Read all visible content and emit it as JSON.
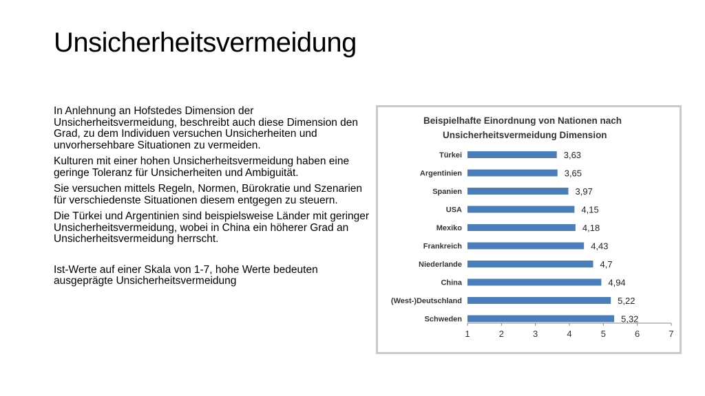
{
  "slide": {
    "title": "Unsicherheitsvermeidung",
    "paragraphs": [
      "In Anlehnung an Hofstedes Dimension der Unsicherheitsvermeidung, beschreibt auch diese Dimension den Grad, zu dem Individuen versuchen Unsicherheiten und unvorhersehbare Situationen zu vermeiden.",
      "Kulturen mit einer hohen Unsicherheitsvermeidung haben eine geringe Toleranz für Unsicherheiten und Ambiguität.",
      "Sie versuchen mittels Regeln, Normen, Bürokratie und Szenarien für verschiedenste Situationen diesem entgegen zu steuern.",
      "Die Türkei und Argentinien sind beispielsweise Länder mit geringer Unsicherheitsvermeidung, wobei in China ein höherer Grad an Unsicherheitsvermeidung herrscht.",
      "Ist-Werte auf einer Skala von 1-7, hohe Werte bedeuten ausgeprägte Unsicherheitsvermeidung"
    ]
  },
  "chart_data": {
    "type": "bar",
    "orientation": "horizontal",
    "title_lines": [
      "Beispielhafte Einordnung von Nationen nach",
      "Unsicherheitsvermeidung Dimension"
    ],
    "categories": [
      "Türkei",
      "Argentinien",
      "Spanien",
      "USA",
      "Mexiko",
      "Frankreich",
      "Niederlande",
      "China",
      "(West-)Deutschland",
      "Schweden"
    ],
    "values": [
      3.63,
      3.65,
      3.97,
      4.15,
      4.18,
      4.43,
      4.7,
      4.94,
      5.22,
      5.32
    ],
    "value_labels": [
      "3,63",
      "3,65",
      "3,97",
      "4,15",
      "4,18",
      "4,43",
      "4,7",
      "4,94",
      "5,22",
      "5,32"
    ],
    "xlim": [
      1,
      7
    ],
    "ticks": [
      "1",
      "2",
      "3",
      "4",
      "5",
      "6",
      "7"
    ],
    "bar_color": "#4a7ebb",
    "grid": false,
    "legend": "none"
  }
}
